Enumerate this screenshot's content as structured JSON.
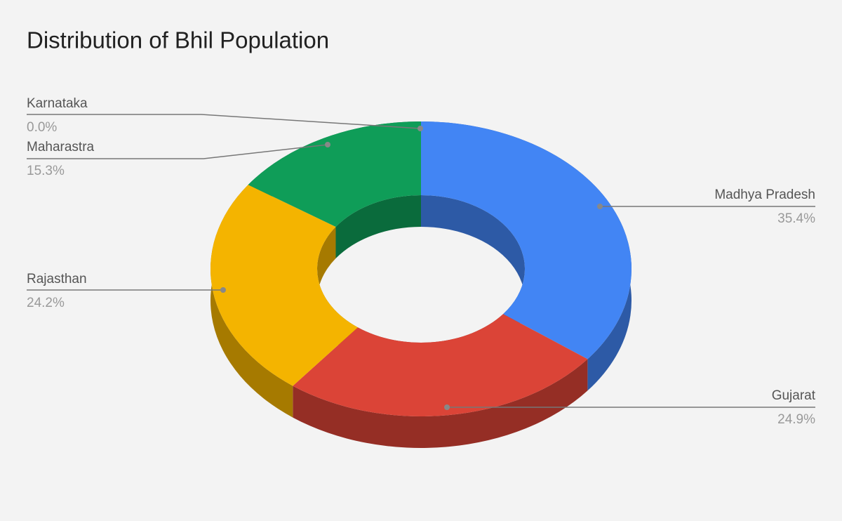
{
  "chart_data": {
    "type": "donut",
    "title": "Distribution of Bhil Population",
    "categories": [
      "Madhya Pradesh",
      "Gujarat",
      "Rajasthan",
      "Maharastra",
      "Karnataka"
    ],
    "values": [
      35.4,
      24.9,
      24.2,
      15.3,
      0
    ],
    "value_labels": [
      "35.4%",
      "24.9%",
      "24.2%",
      "15.3%",
      "0.0%"
    ],
    "colors": [
      "#4285f4",
      "#db4437",
      "#f4b400",
      "#0f9d58",
      "#ab47bc"
    ]
  }
}
